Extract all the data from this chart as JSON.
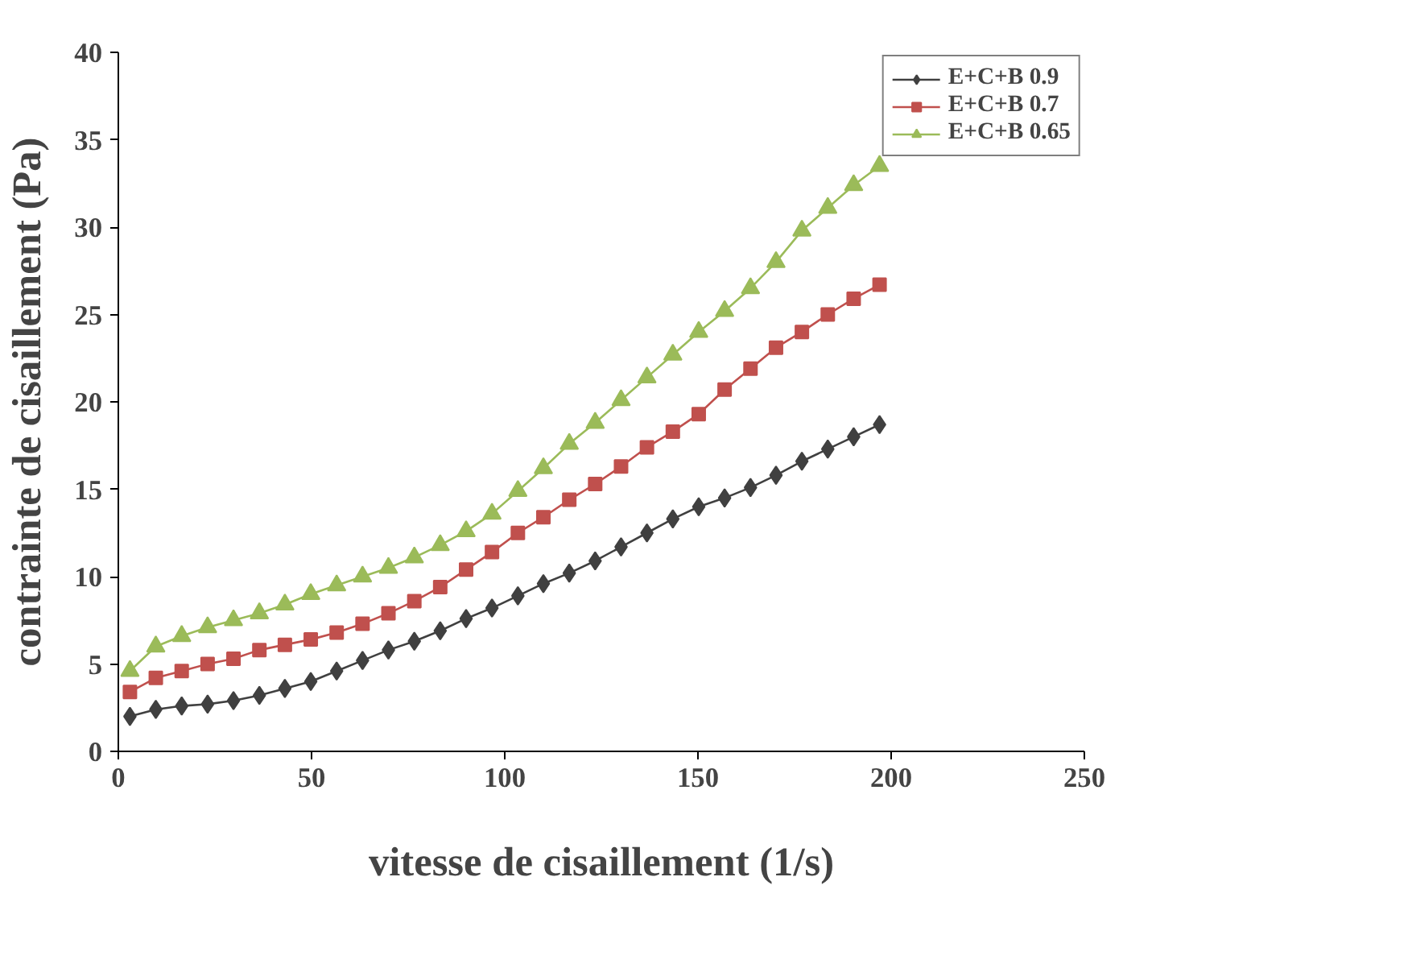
{
  "chart_data": {
    "type": "line",
    "xlabel": "vitesse de cisaillement (1/s)",
    "ylabel": "contrainte de cisaillement (Pa)",
    "x": [
      3,
      9.7,
      16.4,
      23.1,
      29.8,
      36.5,
      43.1,
      49.8,
      56.5,
      63.2,
      69.9,
      76.6,
      83.3,
      90,
      96.7,
      103.4,
      110,
      116.7,
      123.4,
      130.1,
      136.8,
      143.5,
      150.2,
      156.9,
      163.6,
      170.2,
      176.9,
      183.6,
      190.3,
      197
    ],
    "series": [
      {
        "name": "E+C+B 0.9",
        "color": "#404040",
        "marker": "diamond",
        "values": [
          2.0,
          2.4,
          2.6,
          2.7,
          2.9,
          3.2,
          3.6,
          4.0,
          4.6,
          5.2,
          5.8,
          6.3,
          6.9,
          7.6,
          8.2,
          8.9,
          9.6,
          10.2,
          10.9,
          11.7,
          12.5,
          13.3,
          14.0,
          14.5,
          15.1,
          15.8,
          16.6,
          17.3,
          18.0,
          18.7
        ]
      },
      {
        "name": "E+C+B 0.7",
        "color": "#c0504d",
        "marker": "square",
        "values": [
          3.4,
          4.2,
          4.6,
          5.0,
          5.3,
          5.8,
          6.1,
          6.4,
          6.8,
          7.3,
          7.9,
          8.6,
          9.4,
          10.4,
          11.4,
          12.5,
          13.4,
          14.4,
          15.3,
          16.3,
          17.4,
          18.3,
          19.3,
          20.7,
          21.9,
          23.1,
          24.0,
          25.0,
          25.9,
          26.7
        ]
      },
      {
        "name": "E+C+B 0.65",
        "color": "#9bbb59",
        "marker": "triangle",
        "values": [
          4.6,
          6.0,
          6.6,
          7.1,
          7.5,
          7.9,
          8.4,
          9.0,
          9.5,
          10.0,
          10.5,
          11.1,
          11.8,
          12.6,
          13.6,
          14.9,
          16.2,
          17.6,
          18.8,
          20.1,
          21.4,
          22.7,
          24.0,
          25.2,
          26.5,
          28.0,
          29.8,
          31.1,
          32.4,
          33.5
        ]
      }
    ],
    "xlim": [
      0,
      250
    ],
    "xticks": [
      0,
      50,
      100,
      150,
      200,
      250
    ],
    "ylim": [
      0,
      40
    ],
    "yticks": [
      0,
      5,
      10,
      15,
      20,
      25,
      30,
      35,
      40
    ],
    "grid": false,
    "legend": "top right"
  }
}
